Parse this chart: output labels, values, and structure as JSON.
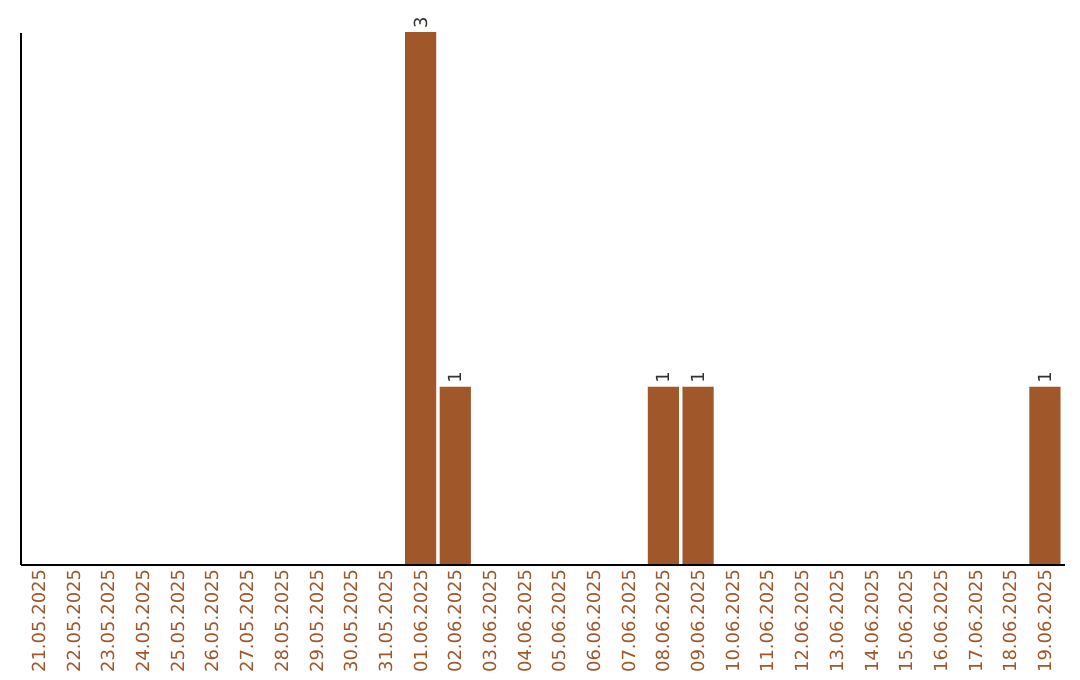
{
  "chart_data": {
    "type": "bar",
    "categories": [
      "21.05.2025",
      "22.05.2025",
      "23.05.2025",
      "24.05.2025",
      "25.05.2025",
      "26.05.2025",
      "27.05.2025",
      "28.05.2025",
      "29.05.2025",
      "30.05.2025",
      "31.05.2025",
      "01.06.2025",
      "02.06.2025",
      "03.06.2025",
      "04.06.2025",
      "05.06.2025",
      "06.06.2025",
      "07.06.2025",
      "08.06.2025",
      "09.06.2025",
      "10.06.2025",
      "11.06.2025",
      "12.06.2025",
      "13.06.2025",
      "14.06.2025",
      "15.06.2025",
      "16.06.2025",
      "17.06.2025",
      "18.06.2025",
      "19.06.2025"
    ],
    "values": [
      0,
      0,
      0,
      0,
      0,
      0,
      0,
      0,
      0,
      0,
      0,
      3,
      1,
      0,
      0,
      0,
      0,
      0,
      1,
      1,
      0,
      0,
      0,
      0,
      0,
      0,
      0,
      0,
      0,
      1
    ],
    "value_labels": [
      null,
      null,
      null,
      null,
      null,
      null,
      null,
      null,
      null,
      null,
      null,
      "3",
      "1",
      null,
      null,
      null,
      null,
      null,
      "1",
      "1",
      null,
      null,
      null,
      null,
      null,
      null,
      null,
      null,
      null,
      "1"
    ],
    "color": "#a0572a",
    "tick_labels": "x",
    "grid": false
  }
}
